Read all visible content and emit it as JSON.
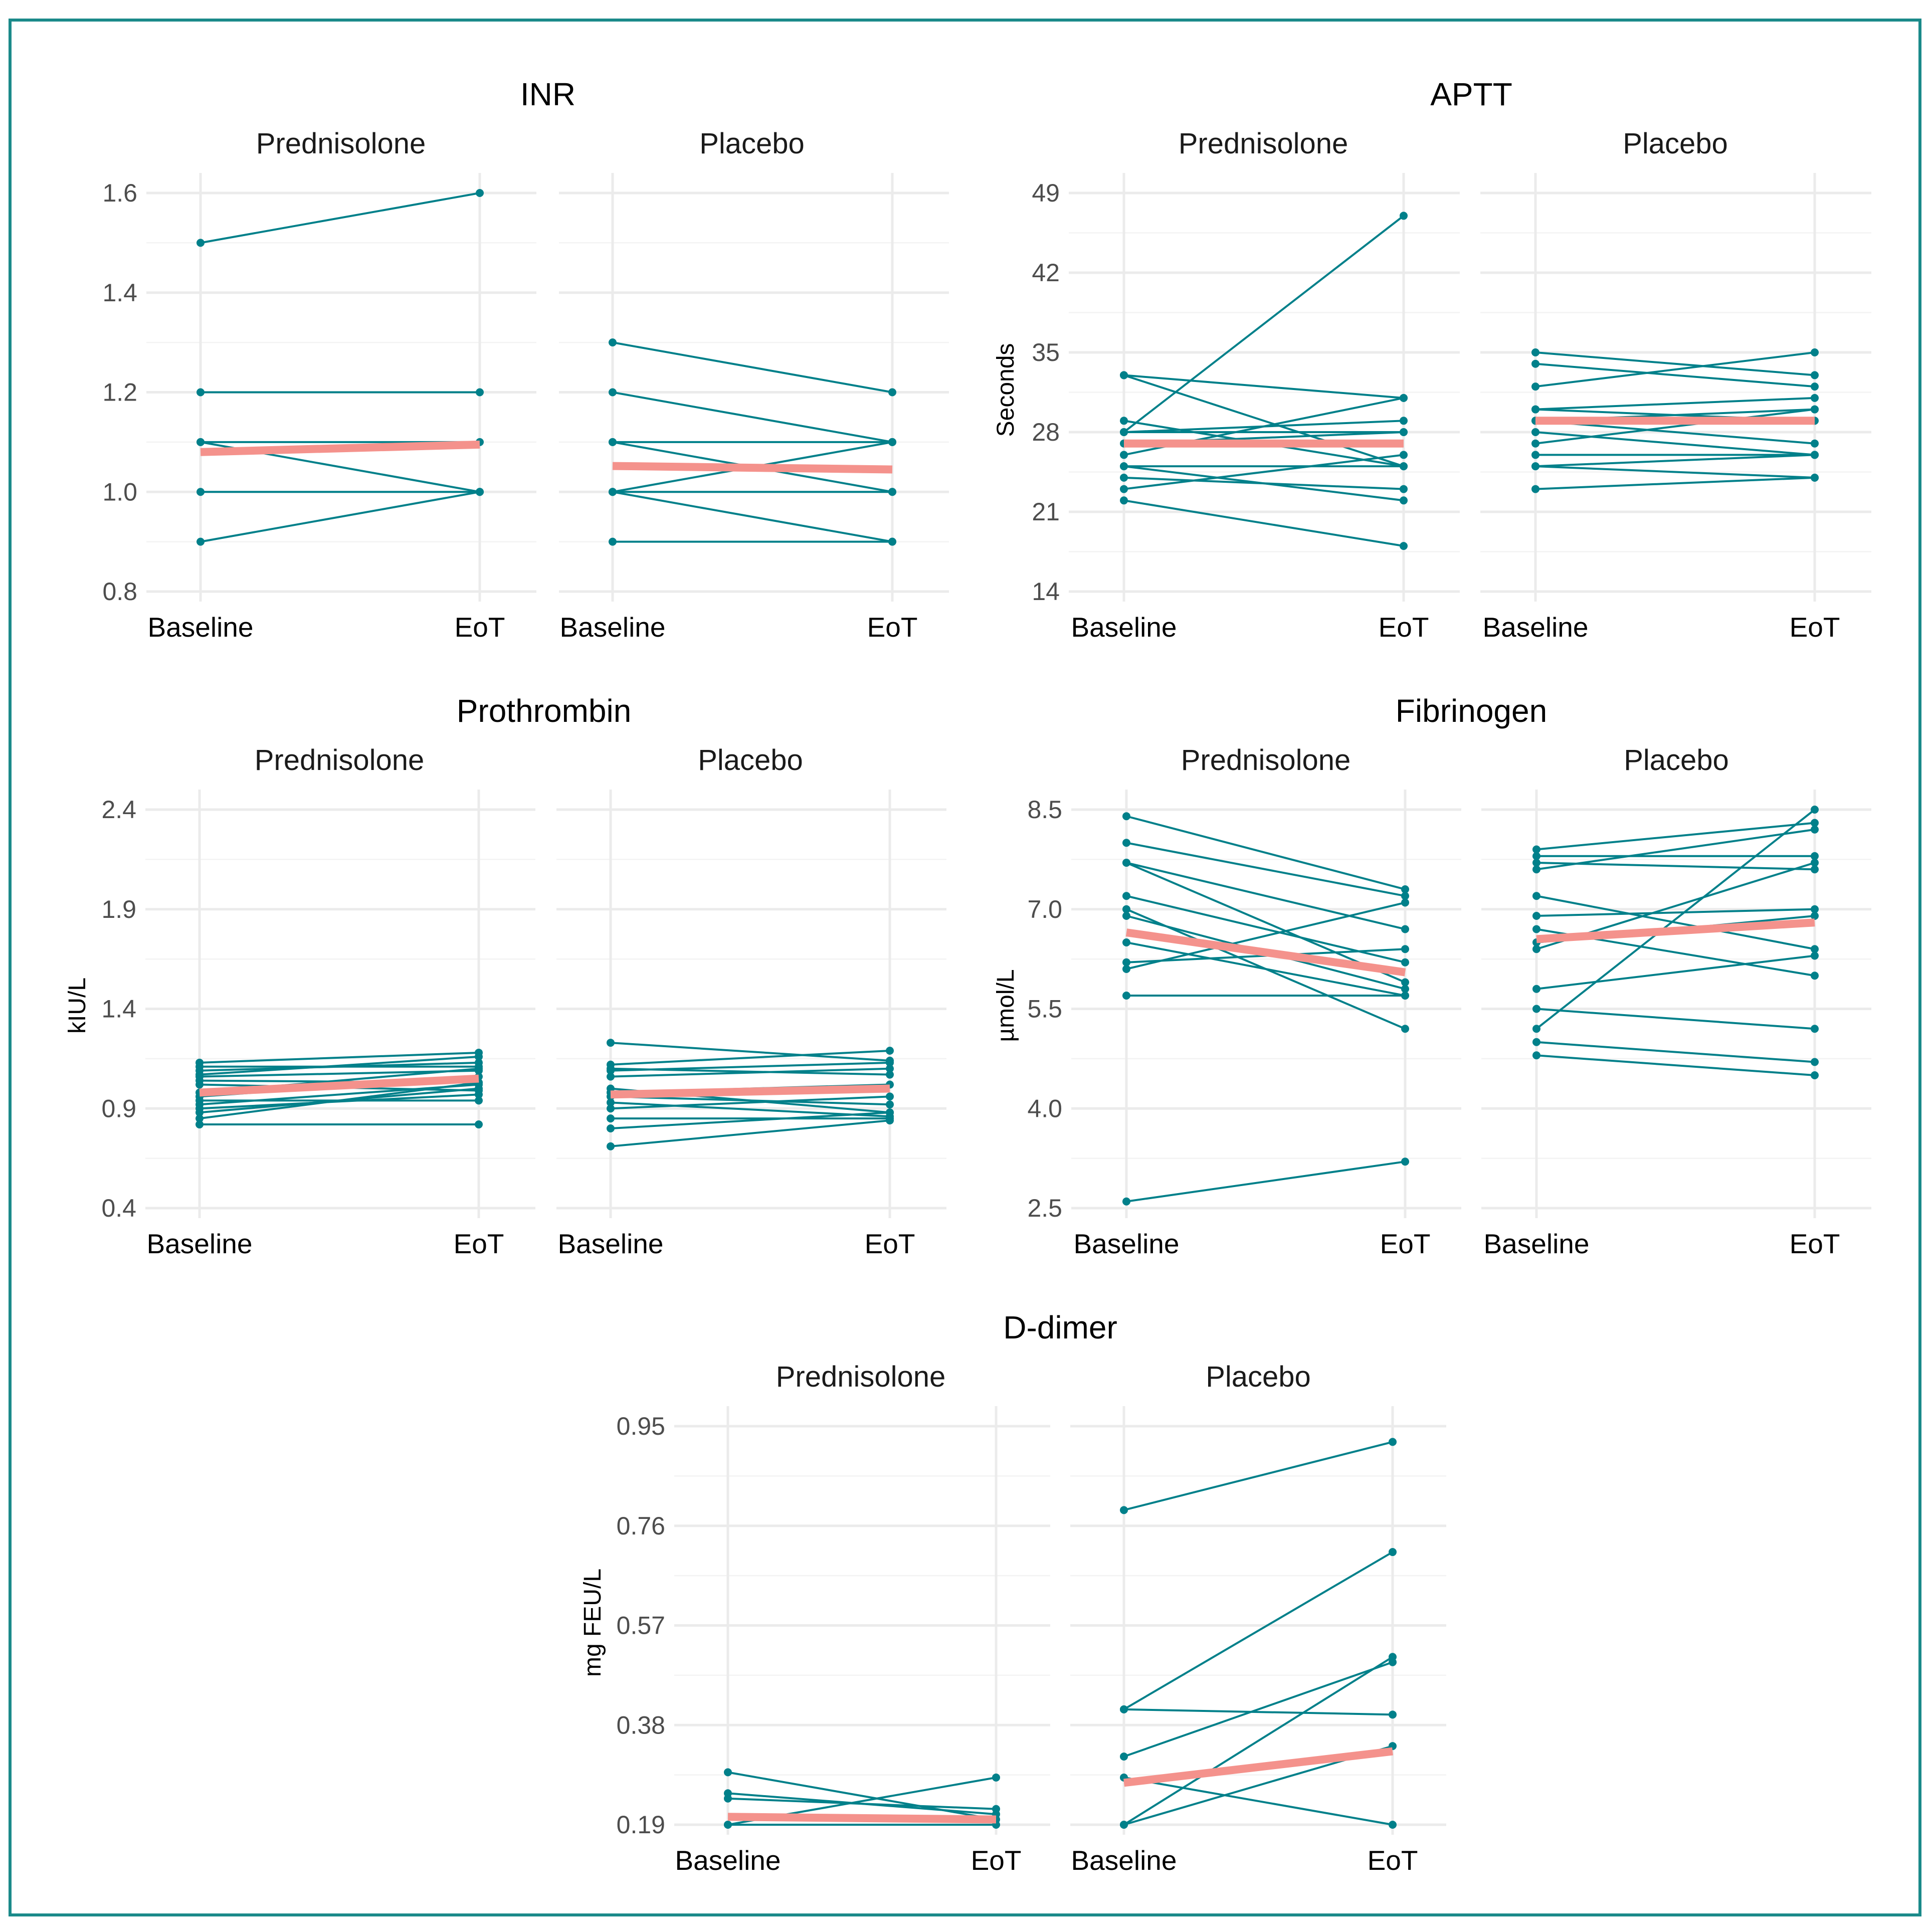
{
  "colors": {
    "subject": "#00808a",
    "mean": "#f4928c",
    "frame": "#1b8a8a"
  },
  "chart_data": [
    {
      "id": "inr",
      "type": "line",
      "title": "INR",
      "ylabel": "",
      "x": [
        "Baseline",
        "EoT"
      ],
      "ylim": [
        0.8,
        1.6
      ],
      "yticks": [
        0.8,
        1.0,
        1.2,
        1.4,
        1.6
      ],
      "yticklabels": [
        "0.8",
        "1.0",
        "1.2",
        "1.4",
        "1.6"
      ],
      "facets": [
        {
          "label": "Prednisolone",
          "mean": [
            1.08,
            1.095
          ],
          "subjects": [
            [
              1.5,
              1.6
            ],
            [
              1.2,
              1.2
            ],
            [
              1.1,
              1.1
            ],
            [
              1.1,
              1.0
            ],
            [
              1.0,
              1.0
            ],
            [
              0.9,
              1.0
            ]
          ]
        },
        {
          "label": "Placebo",
          "mean": [
            1.052,
            1.045
          ],
          "subjects": [
            [
              1.3,
              1.2
            ],
            [
              1.2,
              1.1
            ],
            [
              1.1,
              1.1
            ],
            [
              1.1,
              1.0
            ],
            [
              1.0,
              1.1
            ],
            [
              1.0,
              1.0
            ],
            [
              1.0,
              0.9
            ],
            [
              0.9,
              0.9
            ]
          ]
        }
      ]
    },
    {
      "id": "aptt",
      "type": "line",
      "title": "APTT",
      "ylabel": "Seconds",
      "x": [
        "Baseline",
        "EoT"
      ],
      "ylim": [
        14,
        49
      ],
      "yticks": [
        14,
        21,
        28,
        35,
        42,
        49
      ],
      "yticklabels": [
        "14",
        "21",
        "28",
        "35",
        "42",
        "49"
      ],
      "facets": [
        {
          "label": "Prednisolone",
          "mean": [
            27.0,
            27.0
          ],
          "subjects": [
            [
              28,
              47
            ],
            [
              33,
              31
            ],
            [
              33,
              25
            ],
            [
              29,
              25
            ],
            [
              28,
              28
            ],
            [
              28,
              29
            ],
            [
              27,
              28
            ],
            [
              26,
              31
            ],
            [
              25,
              25
            ],
            [
              25,
              22
            ],
            [
              24,
              23
            ],
            [
              23,
              26
            ],
            [
              22,
              18
            ]
          ]
        },
        {
          "label": "Placebo",
          "mean": [
            29.0,
            29.0
          ],
          "subjects": [
            [
              35,
              33
            ],
            [
              34,
              32
            ],
            [
              32,
              35
            ],
            [
              30,
              29
            ],
            [
              30,
              31
            ],
            [
              29,
              30
            ],
            [
              29,
              27
            ],
            [
              28,
              26
            ],
            [
              27,
              30
            ],
            [
              26,
              26
            ],
            [
              25,
              26
            ],
            [
              25,
              24
            ],
            [
              23,
              24
            ]
          ]
        }
      ]
    },
    {
      "id": "prothrombin",
      "type": "line",
      "title": "Prothrombin",
      "ylabel": "kIU/L",
      "x": [
        "Baseline",
        "EoT"
      ],
      "ylim": [
        0.4,
        2.4
      ],
      "yticks": [
        0.4,
        0.9,
        1.4,
        1.9,
        2.4
      ],
      "yticklabels": [
        "0.4",
        "0.9",
        "1.4",
        "1.9",
        "2.4"
      ],
      "facets": [
        {
          "label": "Prednisolone",
          "mean": [
            0.98,
            1.05
          ],
          "subjects": [
            [
              1.13,
              1.18
            ],
            [
              1.11,
              1.11
            ],
            [
              1.09,
              1.13
            ],
            [
              1.07,
              1.16
            ],
            [
              1.06,
              1.09
            ],
            [
              1.04,
              1.03
            ],
            [
              1.02,
              0.99
            ],
            [
              0.98,
              1.1
            ],
            [
              0.96,
              1.06
            ],
            [
              0.94,
              0.94
            ],
            [
              0.92,
              1.02
            ],
            [
              0.9,
              0.97
            ],
            [
              0.88,
              1.0
            ],
            [
              0.85,
              1.03
            ],
            [
              0.82,
              0.82
            ]
          ]
        },
        {
          "label": "Placebo",
          "mean": [
            0.97,
            1.0
          ],
          "subjects": [
            [
              1.23,
              1.14
            ],
            [
              1.12,
              1.19
            ],
            [
              1.1,
              1.07
            ],
            [
              1.09,
              1.13
            ],
            [
              1.06,
              1.1
            ],
            [
              1.0,
              0.88
            ],
            [
              0.98,
              1.02
            ],
            [
              0.96,
              0.92
            ],
            [
              0.93,
              0.86
            ],
            [
              0.9,
              0.96
            ],
            [
              0.85,
              0.85
            ],
            [
              0.8,
              0.88
            ],
            [
              0.71,
              0.84
            ]
          ]
        }
      ]
    },
    {
      "id": "fibrinogen",
      "type": "line",
      "title": "Fibrinogen",
      "ylabel": "µmol/L",
      "x": [
        "Baseline",
        "EoT"
      ],
      "ylim": [
        2.5,
        8.5
      ],
      "yticks": [
        2.5,
        4.0,
        5.5,
        7.0,
        8.5
      ],
      "yticklabels": [
        "2.5",
        "4.0",
        "5.5",
        "7.0",
        "8.5"
      ],
      "facets": [
        {
          "label": "Prednisolone",
          "mean": [
            6.65,
            6.05
          ],
          "subjects": [
            [
              8.4,
              7.3
            ],
            [
              8.0,
              7.2
            ],
            [
              7.7,
              6.7
            ],
            [
              7.7,
              5.9
            ],
            [
              7.2,
              6.2
            ],
            [
              7.0,
              5.2
            ],
            [
              6.9,
              5.8
            ],
            [
              6.5,
              5.7
            ],
            [
              6.2,
              6.4
            ],
            [
              6.1,
              7.1
            ],
            [
              5.7,
              5.7
            ],
            [
              2.6,
              3.2
            ]
          ]
        },
        {
          "label": "Placebo",
          "mean": [
            6.55,
            6.8
          ],
          "subjects": [
            [
              7.9,
              8.3
            ],
            [
              7.8,
              7.8
            ],
            [
              7.7,
              7.6
            ],
            [
              7.6,
              8.2
            ],
            [
              7.2,
              6.4
            ],
            [
              6.9,
              7.0
            ],
            [
              6.7,
              6.0
            ],
            [
              6.5,
              6.9
            ],
            [
              6.4,
              7.7
            ],
            [
              5.8,
              6.3
            ],
            [
              5.5,
              5.2
            ],
            [
              5.2,
              8.5
            ],
            [
              5.0,
              4.7
            ],
            [
              4.8,
              4.5
            ]
          ]
        }
      ]
    },
    {
      "id": "ddimer",
      "type": "line",
      "title": "D-dimer",
      "ylabel": "mg FEU/L",
      "x": [
        "Baseline",
        "EoT"
      ],
      "ylim": [
        0.19,
        0.95
      ],
      "yticks": [
        0.19,
        0.38,
        0.57,
        0.76,
        0.95
      ],
      "yticklabels": [
        "0.19",
        "0.38",
        "0.57",
        "0.76",
        "0.95"
      ],
      "facets": [
        {
          "label": "Prednisolone",
          "mean": [
            0.205,
            0.2
          ],
          "subjects": [
            [
              0.29,
              0.2
            ],
            [
              0.25,
              0.21
            ],
            [
              0.24,
              0.22
            ],
            [
              0.19,
              0.28
            ],
            [
              0.19,
              0.19
            ]
          ]
        },
        {
          "label": "Placebo",
          "mean": [
            0.27,
            0.33
          ],
          "subjects": [
            [
              0.79,
              0.92
            ],
            [
              0.41,
              0.71
            ],
            [
              0.41,
              0.4
            ],
            [
              0.32,
              0.5
            ],
            [
              0.28,
              0.19
            ],
            [
              0.19,
              0.51
            ],
            [
              0.19,
              0.34
            ]
          ]
        }
      ]
    }
  ]
}
